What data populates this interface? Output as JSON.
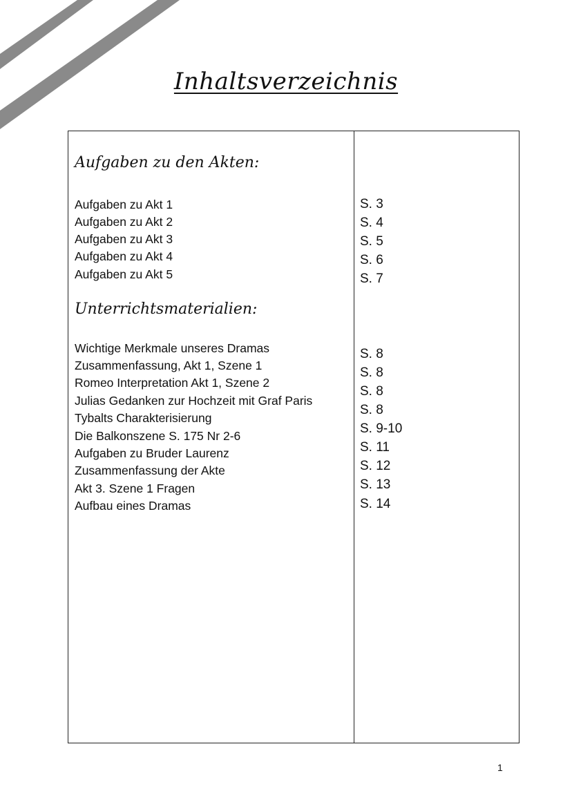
{
  "title": "Inhaltsverzeichnis",
  "stripe_color": "#8a8a8a",
  "sections": [
    {
      "heading": "Aufgaben zu den Akten:",
      "entries": [
        {
          "label": "Aufgaben zu Akt 1",
          "page": "S. 3"
        },
        {
          "label": "Aufgaben zu Akt 2",
          "page": "S. 4"
        },
        {
          "label": "Aufgaben zu Akt 3",
          "page": "S. 5"
        },
        {
          "label": "Aufgaben zu Akt 4",
          "page": "S. 6"
        },
        {
          "label": "Aufgaben zu Akt 5",
          "page": "S. 7"
        }
      ]
    },
    {
      "heading": "Unterrichtsmaterialien:",
      "entries": [
        {
          "label": "Wichtige Merkmale unseres Dramas",
          "page": "S. 8"
        },
        {
          "label": "Zusammenfassung, Akt 1, Szene 1",
          "page": "S. 8"
        },
        {
          "label": "Romeo Interpretation Akt 1, Szene 2",
          "page": "S. 8"
        },
        {
          "label": "Julias Gedanken zur Hochzeit mit Graf Paris",
          "page": "S. 8"
        },
        {
          "label": "Tybalts Charakterisierung",
          "page": "S. 9-10"
        },
        {
          "label": "Die Balkonszene S. 175 Nr 2-6",
          "page": "S. 11"
        },
        {
          "label": "Aufgaben zu Bruder Laurenz",
          "page": "S. 12"
        },
        {
          "label": "Zusammenfassung der Akte",
          "page": "S. 13"
        },
        {
          "label": "Akt 3. Szene 1 Fragen",
          "page": "S. 14"
        },
        {
          "label": "Aufbau eines Dramas",
          "page": null
        }
      ]
    }
  ],
  "page_number": "1"
}
